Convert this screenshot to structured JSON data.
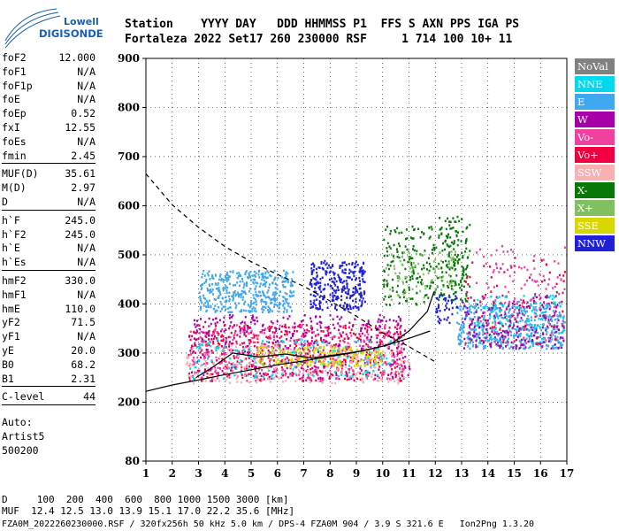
{
  "logo": {
    "brand": "Lowell",
    "product": "DIGISONDE"
  },
  "header": {
    "line1": "Station    YYYY DAY   DDD HHMMSS P1  FFS S AXN PPS IGA PS",
    "line2": "Fortaleza 2022 Set17 260 230000 RSF     1 714 100 10+ 11"
  },
  "params": {
    "groups": [
      [
        {
          "label": "foF2",
          "value": "12.000"
        },
        {
          "label": "foF1",
          "value": "N/A"
        },
        {
          "label": "foF1p",
          "value": "N/A"
        },
        {
          "label": "foE",
          "value": "N/A"
        },
        {
          "label": "foEp",
          "value": "0.52"
        },
        {
          "label": "fxI",
          "value": "12.55"
        },
        {
          "label": "foEs",
          "value": "N/A"
        },
        {
          "label": "fmin",
          "value": "2.45"
        }
      ],
      [
        {
          "label": "MUF(D)",
          "value": "35.61"
        },
        {
          "label": "M(D)",
          "value": "2.97"
        },
        {
          "label": "D",
          "value": "N/A"
        }
      ],
      [
        {
          "label": "h`F",
          "value": "245.0"
        },
        {
          "label": "h`F2",
          "value": "245.0"
        },
        {
          "label": "h`E",
          "value": "N/A"
        },
        {
          "label": "h`Es",
          "value": "N/A"
        }
      ],
      [
        {
          "label": "hmF2",
          "value": "330.0"
        },
        {
          "label": "hmF1",
          "value": "N/A"
        },
        {
          "label": "hmE",
          "value": "110.0"
        },
        {
          "label": "yF2",
          "value": "71.5"
        },
        {
          "label": "yF1",
          "value": "N/A"
        },
        {
          "label": "yE",
          "value": "20.0"
        },
        {
          "label": "B0",
          "value": "68.2"
        },
        {
          "label": "B1",
          "value": "2.31"
        }
      ],
      [
        {
          "label": "C-level",
          "value": "44"
        }
      ]
    ],
    "auto": [
      "Auto:",
      "Artist5",
      "500200"
    ]
  },
  "legend": [
    {
      "label": "NoVal",
      "color": "#808080"
    },
    {
      "label": "NNE",
      "color": "#00d8f0"
    },
    {
      "label": "E",
      "color": "#40a8f0"
    },
    {
      "label": "W",
      "color": "#a800a8"
    },
    {
      "label": "Vo-",
      "color": "#f040a0"
    },
    {
      "label": "Vo+",
      "color": "#f00040"
    },
    {
      "label": "SSW",
      "color": "#f8b0b0"
    },
    {
      "label": "X-",
      "color": "#087808"
    },
    {
      "label": "X+",
      "color": "#80c060"
    },
    {
      "label": "SSE",
      "color": "#d8d800"
    },
    {
      "label": "NNW",
      "color": "#2020d8"
    }
  ],
  "footer": {
    "line1": "D     100  200  400  600  800 1000 1500 3000 [km]",
    "line2": "MUF  12.4 12.5 13.0 13.9 15.1 17.0 22.2 35.6 [MHz]",
    "line3": "FZA0M_2022260230000.RSF / 320fx256h 50 kHz 5.0 km / DPS-4 FZA0M 904 / 3.9 S 321.6 E   Ion2Png 1.3.20"
  },
  "chart_data": {
    "type": "scatter",
    "title": "",
    "xlabel": "",
    "ylabel": "",
    "xlim": [
      1,
      17
    ],
    "ylim": [
      80,
      900
    ],
    "x_ticks": [
      1,
      2,
      3,
      4,
      5,
      6,
      7,
      8,
      9,
      10,
      11,
      12,
      13,
      14,
      15,
      16,
      17
    ],
    "y_ticks": [
      80,
      200,
      300,
      400,
      500,
      600,
      700,
      800,
      900
    ],
    "grid": true,
    "traces": [
      {
        "style": "solid",
        "points": [
          [
            1.0,
            222
          ],
          [
            2.0,
            235
          ],
          [
            3.0,
            245
          ],
          [
            4.0,
            256
          ],
          [
            5.0,
            266
          ],
          [
            6.0,
            276
          ],
          [
            7.0,
            284
          ],
          [
            8.0,
            293
          ],
          [
            9.0,
            302
          ],
          [
            10.0,
            314
          ],
          [
            11.0,
            330
          ],
          [
            11.8,
            345
          ]
        ]
      },
      {
        "style": "solid",
        "points": [
          [
            2.9,
            250
          ],
          [
            3.5,
            270
          ],
          [
            4.3,
            300
          ],
          [
            5.3,
            292
          ],
          [
            6.3,
            298
          ],
          [
            7.3,
            290
          ],
          [
            8.3,
            297
          ],
          [
            9.3,
            305
          ],
          [
            10.3,
            318
          ],
          [
            11.0,
            345
          ],
          [
            11.7,
            385
          ],
          [
            11.95,
            425
          ]
        ]
      },
      {
        "style": "dashed",
        "points": [
          [
            1.0,
            665
          ],
          [
            2.0,
            602
          ],
          [
            3.0,
            556
          ],
          [
            4.0,
            517
          ],
          [
            5.0,
            486
          ],
          [
            6.0,
            460
          ],
          [
            7.0,
            436
          ],
          [
            8.0,
            406
          ],
          [
            9.0,
            375
          ],
          [
            10.0,
            341
          ],
          [
            11.0,
            313
          ],
          [
            12.0,
            282
          ]
        ]
      }
    ],
    "clusters": [
      {
        "color": "#40a8f0",
        "x": [
          3.0,
          6.6
        ],
        "y": [
          385,
          470
        ],
        "n": 420
      },
      {
        "color": "#2020d8",
        "x": [
          7.2,
          9.3
        ],
        "y": [
          390,
          490
        ],
        "n": 300
      },
      {
        "color": "#f00040",
        "x": [
          2.6,
          10.8
        ],
        "y": [
          245,
          360
        ],
        "n": 520
      },
      {
        "color": "#a800a8",
        "x": [
          2.6,
          11.0
        ],
        "y": [
          250,
          380
        ],
        "n": 420
      },
      {
        "color": "#f040a0",
        "x": [
          2.6,
          10.8
        ],
        "y": [
          245,
          360
        ],
        "n": 320
      },
      {
        "color": "#f8b0b0",
        "x": [
          2.5,
          11.0
        ],
        "y": [
          240,
          320
        ],
        "n": 300
      },
      {
        "color": "#00d8f0",
        "x": [
          2.6,
          10.5
        ],
        "y": [
          250,
          330
        ],
        "n": 160
      },
      {
        "color": "#d8d800",
        "x": [
          5.2,
          10.0
        ],
        "y": [
          275,
          315
        ],
        "n": 180
      },
      {
        "color": "#087808",
        "x": [
          10.0,
          13.2
        ],
        "y": [
          400,
          560
        ],
        "n": 240
      },
      {
        "color": "#80c060",
        "x": [
          10.0,
          12.8
        ],
        "y": [
          410,
          510
        ],
        "n": 90
      },
      {
        "color": "#40a8f0",
        "x": [
          12.8,
          16.9
        ],
        "y": [
          310,
          400
        ],
        "n": 450
      },
      {
        "color": "#a800a8",
        "x": [
          13.0,
          16.9
        ],
        "y": [
          310,
          420
        ],
        "n": 220
      },
      {
        "color": "#f040a0",
        "x": [
          13.5,
          16.9
        ],
        "y": [
          320,
          520
        ],
        "n": 120
      },
      {
        "color": "#00d8f0",
        "x": [
          13.5,
          16.9
        ],
        "y": [
          320,
          420
        ],
        "n": 120
      },
      {
        "color": "#f00040",
        "x": [
          13.0,
          16.9
        ],
        "y": [
          320,
          500
        ],
        "n": 80
      },
      {
        "color": "#2020d8",
        "x": [
          12.0,
          12.8
        ],
        "y": [
          360,
          420
        ],
        "n": 40
      },
      {
        "color": "#087808",
        "x": [
          12.1,
          13.3
        ],
        "y": [
          420,
          580
        ],
        "n": 80
      }
    ]
  }
}
